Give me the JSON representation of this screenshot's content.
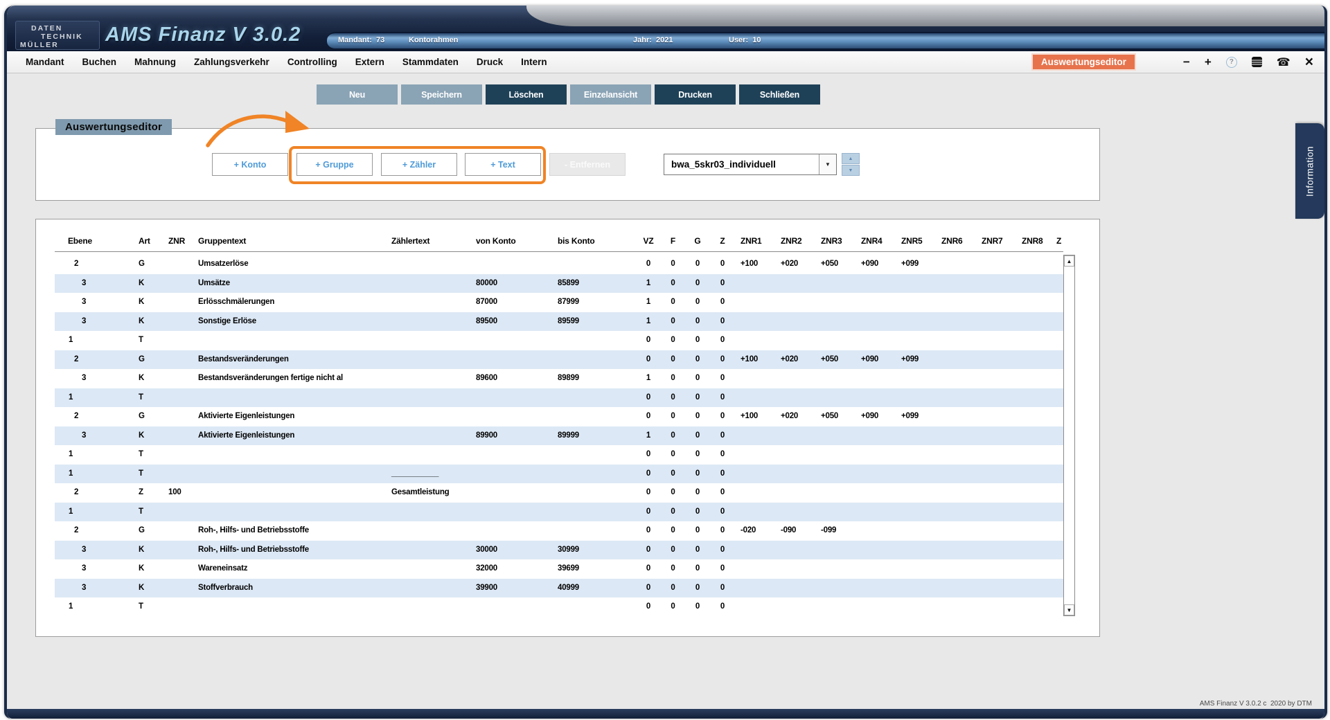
{
  "window": {
    "logo_lines": [
      "DATEN",
      "TECHNIK",
      "MÜLLER"
    ],
    "app_title": "AMS Finanz V 3.0.2",
    "status_items": [
      "Mandant:  73",
      "Kontorahmen",
      "Jahr:  2021",
      "User:  10"
    ],
    "footer": "AMS Finanz V 3.0.2 c  2020 by DTM"
  },
  "menu": {
    "items": [
      "Mandant",
      "Buchen",
      "Mahnung",
      "Zahlungsverkehr",
      "Controlling",
      "Extern",
      "Stammdaten",
      "Druck",
      "Intern"
    ]
  },
  "header_right": {
    "badge": "Auswertungseditor",
    "icons": [
      "minimize-icon",
      "maximize-icon",
      "help-icon",
      "notes-icon",
      "phone-icon",
      "close-icon"
    ]
  },
  "toolbar": {
    "buttons": [
      {
        "label": "Neu",
        "style": "light"
      },
      {
        "label": "Speichern",
        "style": "light"
      },
      {
        "label": "Löschen",
        "style": "dark"
      },
      {
        "label": "Einzelansicht",
        "style": "light"
      },
      {
        "label": "Drucken",
        "style": "dark"
      },
      {
        "label": "Schließen",
        "style": "dark"
      }
    ]
  },
  "editor_panel": {
    "title": "Auswertungseditor",
    "add_buttons": [
      "+ Konto",
      "+ Gruppe",
      "+ Zähler",
      "+ Text"
    ],
    "remove_button": "- Entfernen",
    "dropdown_value": "bwa_5skr03_individuell",
    "info_tab": "Information"
  },
  "table": {
    "columns": [
      "Ebene",
      "Art",
      "ZNR",
      "Gruppentext",
      "Zählertext",
      "von Konto",
      "bis Konto",
      "VZ",
      "F",
      "G",
      "Z",
      "ZNR1",
      "ZNR2",
      "ZNR3",
      "ZNR4",
      "ZNR5",
      "ZNR6",
      "ZNR7",
      "ZNR8"
    ],
    "clipped_last_column": "Z",
    "rows": [
      [
        "2",
        "G",
        "",
        "Umsatzerlöse",
        "",
        "",
        "",
        "0",
        "0",
        "0",
        "0",
        "+100",
        "+020",
        "+050",
        "+090",
        "+099",
        "",
        "",
        ""
      ],
      [
        "3",
        "K",
        "",
        "Umsätze",
        "",
        "80000",
        "85899",
        "1",
        "0",
        "0",
        "0",
        "",
        "",
        "",
        "",
        "",
        "",
        "",
        ""
      ],
      [
        "3",
        "K",
        "",
        "Erlösschmälerungen",
        "",
        "87000",
        "87999",
        "1",
        "0",
        "0",
        "0",
        "",
        "",
        "",
        "",
        "",
        "",
        "",
        ""
      ],
      [
        "3",
        "K",
        "",
        "Sonstige Erlöse",
        "",
        "89500",
        "89599",
        "1",
        "0",
        "0",
        "0",
        "",
        "",
        "",
        "",
        "",
        "",
        "",
        ""
      ],
      [
        "1",
        "T",
        "",
        "",
        "",
        "",
        "",
        "0",
        "0",
        "0",
        "0",
        "",
        "",
        "",
        "",
        "",
        "",
        "",
        ""
      ],
      [
        "2",
        "G",
        "",
        "Bestandsveränderungen",
        "",
        "",
        "",
        "0",
        "0",
        "0",
        "0",
        "+100",
        "+020",
        "+050",
        "+090",
        "+099",
        "",
        "",
        ""
      ],
      [
        "3",
        "K",
        "",
        "Bestandsveränderungen fertige nicht al",
        "",
        "89600",
        "89899",
        "1",
        "0",
        "0",
        "0",
        "",
        "",
        "",
        "",
        "",
        "",
        "",
        ""
      ],
      [
        "1",
        "T",
        "",
        "",
        "",
        "",
        "",
        "0",
        "0",
        "0",
        "0",
        "",
        "",
        "",
        "",
        "",
        "",
        "",
        ""
      ],
      [
        "2",
        "G",
        "",
        "Aktivierte Eigenleistungen",
        "",
        "",
        "",
        "0",
        "0",
        "0",
        "0",
        "+100",
        "+020",
        "+050",
        "+090",
        "+099",
        "",
        "",
        ""
      ],
      [
        "3",
        "K",
        "",
        "Aktivierte Eigenleistungen",
        "",
        "89900",
        "89999",
        "1",
        "0",
        "0",
        "0",
        "",
        "",
        "",
        "",
        "",
        "",
        "",
        ""
      ],
      [
        "1",
        "T",
        "",
        "",
        "",
        "",
        "",
        "0",
        "0",
        "0",
        "0",
        "",
        "",
        "",
        "",
        "",
        "",
        "",
        ""
      ],
      [
        "1",
        "T",
        "",
        "",
        "___________",
        "",
        "",
        "0",
        "0",
        "0",
        "0",
        "",
        "",
        "",
        "",
        "",
        "",
        "",
        ""
      ],
      [
        "2",
        "Z",
        "100",
        "",
        "Gesamtleistung",
        "",
        "",
        "0",
        "0",
        "0",
        "0",
        "",
        "",
        "",
        "",
        "",
        "",
        "",
        ""
      ],
      [
        "1",
        "T",
        "",
        "",
        "",
        "",
        "",
        "0",
        "0",
        "0",
        "0",
        "",
        "",
        "",
        "",
        "",
        "",
        "",
        ""
      ],
      [
        "2",
        "G",
        "",
        "Roh-, Hilfs- und Betriebsstoffe",
        "",
        "",
        "",
        "0",
        "0",
        "0",
        "0",
        "-020",
        "-090",
        "-099",
        "",
        "",
        "",
        "",
        ""
      ],
      [
        "3",
        "K",
        "",
        "Roh-, Hilfs- und Betriebsstoffe",
        "",
        "30000",
        "30999",
        "0",
        "0",
        "0",
        "0",
        "",
        "",
        "",
        "",
        "",
        "",
        "",
        ""
      ],
      [
        "3",
        "K",
        "",
        "Wareneinsatz",
        "",
        "32000",
        "39699",
        "0",
        "0",
        "0",
        "0",
        "",
        "",
        "",
        "",
        "",
        "",
        "",
        ""
      ],
      [
        "3",
        "K",
        "",
        "Stoffverbrauch",
        "",
        "39900",
        "40999",
        "0",
        "0",
        "0",
        "0",
        "",
        "",
        "",
        "",
        "",
        "",
        "",
        ""
      ],
      [
        "1",
        "T",
        "",
        "",
        "",
        "",
        "",
        "0",
        "0",
        "0",
        "0",
        "",
        "",
        "",
        "",
        "",
        "",
        "",
        ""
      ]
    ]
  },
  "colors": {
    "accent_orange": "#F08426",
    "badge_orange": "#E7734D",
    "button_dark": "#1E4158",
    "button_light": "#8AA3B5",
    "row_stripe": "#DCE8F5",
    "link_blue": "#4F9BD8",
    "panel_title_bg": "#7F9AAE",
    "titlebar_navy": "#16243D",
    "info_tab_bg": "#24395B"
  }
}
